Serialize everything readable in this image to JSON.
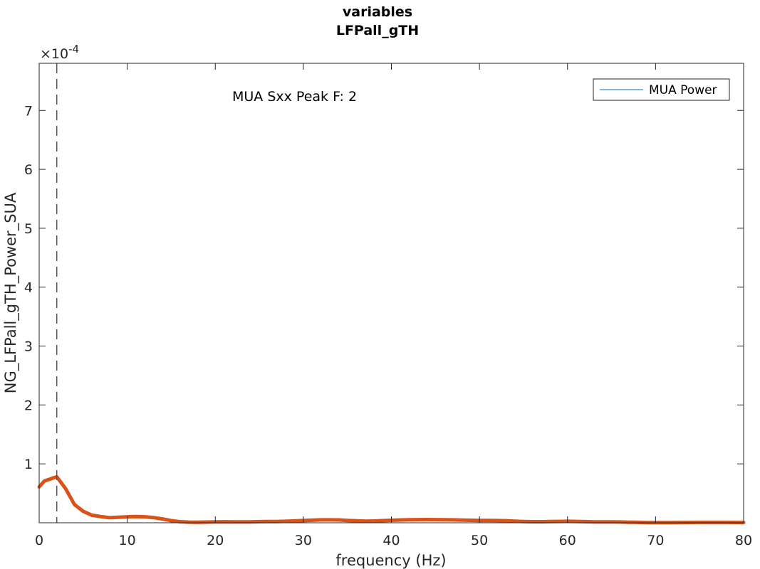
{
  "chart_data": {
    "type": "line",
    "title": "variables",
    "subtitle": "LFPall_gTH",
    "xlabel": "frequency (Hz)",
    "ylabel": "NG_LFPall_gTH_Power_SUA",
    "xlim": [
      0,
      80
    ],
    "ylim": [
      0,
      0.00078
    ],
    "y_exponent_label": "×10",
    "y_exponent_value": "-4",
    "y_tick_scale": 0.0001,
    "xticks": [
      0,
      10,
      20,
      30,
      40,
      50,
      60,
      70,
      80
    ],
    "yticks": [
      1,
      2,
      3,
      4,
      5,
      6,
      7
    ],
    "grid": false,
    "legend_placement": "top-right",
    "annotation": "MUA Sxx Peak F: 2",
    "peak_frequency": 2,
    "legend": [
      {
        "label": "MUA Power",
        "color": "#0072BD"
      }
    ],
    "series": [
      {
        "color": "#D95319",
        "x": [
          0,
          0.6,
          1,
          2,
          3,
          4,
          5,
          5.5,
          6,
          7,
          8,
          9,
          10,
          11,
          12,
          13,
          14,
          15,
          16,
          17,
          18,
          19,
          20,
          21,
          22,
          23,
          24,
          25,
          26,
          27,
          28,
          29,
          30,
          31,
          32,
          33,
          34,
          35,
          36,
          37,
          38,
          39,
          40,
          41,
          42,
          43,
          44,
          45,
          46,
          47,
          48,
          49,
          50,
          51,
          52,
          53,
          54,
          55,
          56,
          57,
          58,
          59,
          60,
          61,
          62,
          63,
          64,
          65,
          66,
          67,
          68,
          69,
          70,
          71,
          72,
          73,
          74,
          75,
          76,
          77,
          78,
          79,
          80
        ],
        "values": [
          6.1e-05,
          7.1e-05,
          7.3e-05,
          7.8e-05,
          5.8e-05,
          3.1e-05,
          1.95e-05,
          1.6e-05,
          1.28e-05,
          1.05e-05,
          8.6e-06,
          9.3e-06,
          1.02e-05,
          1.05e-05,
          1.01e-05,
          8.8e-06,
          6.5e-06,
          3.6e-06,
          1.8e-06,
          1.1e-06,
          9e-07,
          1.2e-06,
          1.5e-06,
          1.7e-06,
          1.6e-06,
          1.5e-06,
          1.6e-06,
          1.9e-06,
          2e-06,
          2.2e-06,
          2.5e-06,
          3.1e-06,
          3.8e-06,
          4.4e-06,
          4.9e-06,
          5e-06,
          4.8e-06,
          4e-06,
          3.2e-06,
          2.8e-06,
          3e-06,
          3.6e-06,
          4.2e-06,
          4.7e-06,
          5.1e-06,
          5.3e-06,
          5.4e-06,
          5.3e-06,
          5.1e-06,
          4.9e-06,
          4.6e-06,
          4.2e-06,
          4e-06,
          3.9e-06,
          3.8e-06,
          3.5e-06,
          2.8e-06,
          2.2e-06,
          1.8e-06,
          1.8e-06,
          2e-06,
          2.3e-06,
          2.5e-06,
          2.3e-06,
          1.9e-06,
          1.6e-06,
          1.5e-06,
          1.4e-06,
          1.3e-06,
          1e-06,
          7e-07,
          4e-07,
          2e-07,
          2e-07,
          3e-07,
          5e-07,
          6e-07,
          7e-07,
          7e-07,
          7e-07,
          7e-07,
          6e-07,
          5e-07
        ]
      }
    ]
  }
}
